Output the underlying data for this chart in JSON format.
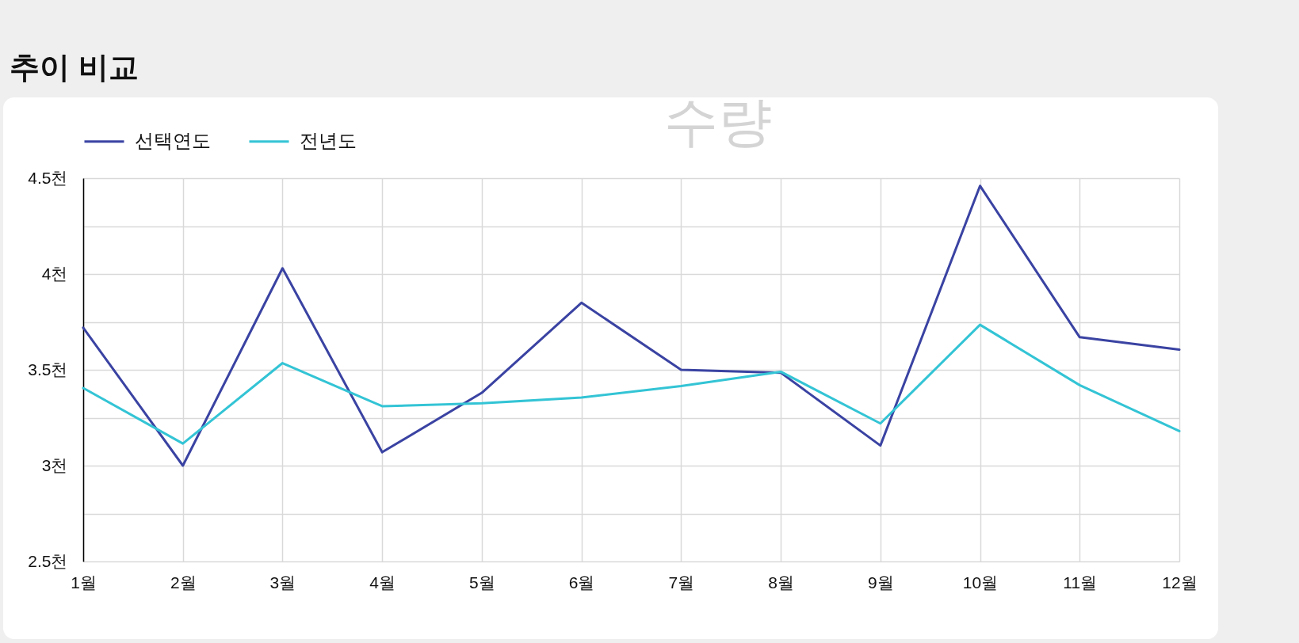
{
  "chart_data": {
    "type": "line",
    "title": "추이 비교",
    "categories": [
      "1월",
      "2월",
      "3월",
      "4월",
      "5월",
      "6월",
      "7월",
      "8월",
      "9월",
      "10월",
      "11월",
      "12월"
    ],
    "series": [
      {
        "name": "선택연도",
        "color": "#3a43a2",
        "values": [
          3.72,
          3.0,
          4.03,
          3.07,
          3.38,
          3.85,
          3.5,
          3.485,
          3.105,
          4.46,
          3.67,
          3.605
        ]
      },
      {
        "name": "전년도",
        "color": "#33c4d5",
        "values": [
          3.405,
          3.115,
          3.535,
          3.31,
          3.325,
          3.355,
          3.415,
          3.49,
          3.22,
          3.735,
          3.42,
          3.18
        ]
      }
    ],
    "ylim": [
      2.5,
      4.5
    ],
    "yticks": [
      {
        "value": 2.5,
        "label": "2.5천"
      },
      {
        "value": 2.75,
        "label": null
      },
      {
        "value": 3,
        "label": "3천"
      },
      {
        "value": 3.25,
        "label": null
      },
      {
        "value": 3.5,
        "label": "3.5천"
      },
      {
        "value": 3.75,
        "label": null
      },
      {
        "value": 4,
        "label": "4천"
      },
      {
        "value": 4.25,
        "label": null
      },
      {
        "value": 4.5,
        "label": "4.5천"
      }
    ],
    "grid": true,
    "legend": "top left",
    "line_style": "solid",
    "annotations": [
      "수량"
    ]
  }
}
